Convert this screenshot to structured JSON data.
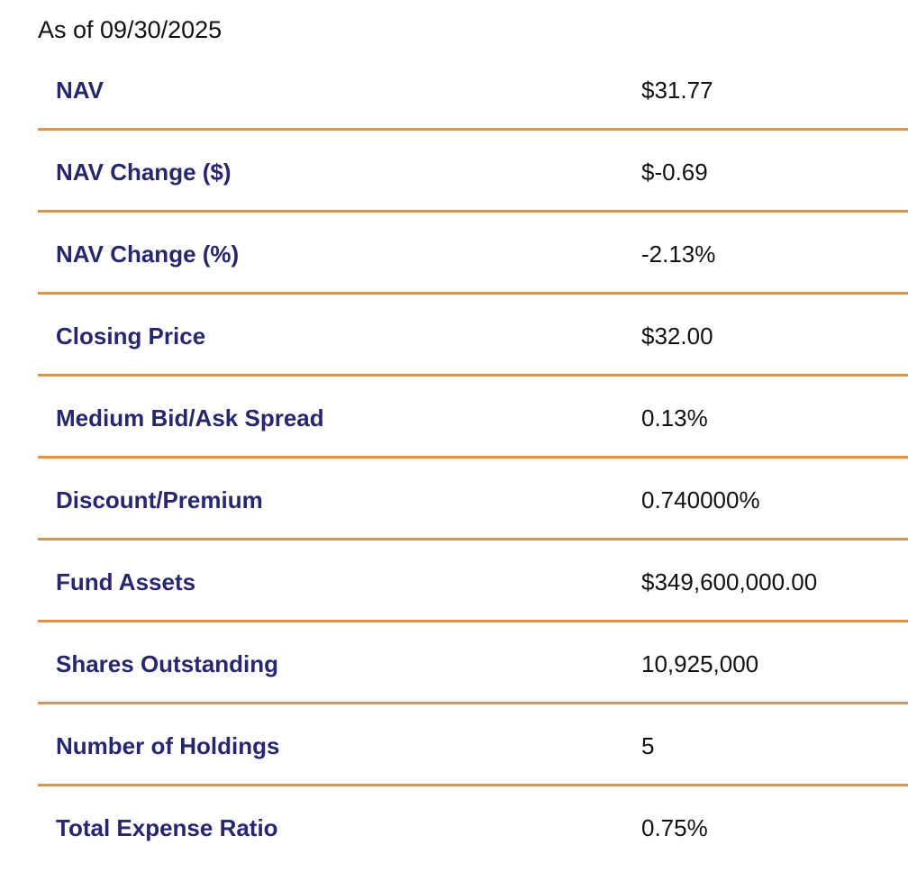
{
  "header": {
    "as_of": "As of 09/30/2025"
  },
  "colors": {
    "label": "#27276e",
    "value": "#111111",
    "divider": "#e0914a",
    "background": "#ffffff"
  },
  "rows": [
    {
      "label": "NAV",
      "value": "$31.77"
    },
    {
      "label": "NAV Change ($)",
      "value": "$-0.69"
    },
    {
      "label": "NAV Change (%)",
      "value": "-2.13%"
    },
    {
      "label": "Closing Price",
      "value": "$32.00"
    },
    {
      "label": "Medium Bid/Ask Spread",
      "value": "0.13%"
    },
    {
      "label": "Discount/Premium",
      "value": "0.740000%"
    },
    {
      "label": "Fund Assets",
      "value": "$349,600,000.00"
    },
    {
      "label": "Shares Outstanding",
      "value": "10,925,000"
    },
    {
      "label": "Number of Holdings",
      "value": "5"
    },
    {
      "label": "Total Expense Ratio",
      "value": "0.75%"
    }
  ]
}
